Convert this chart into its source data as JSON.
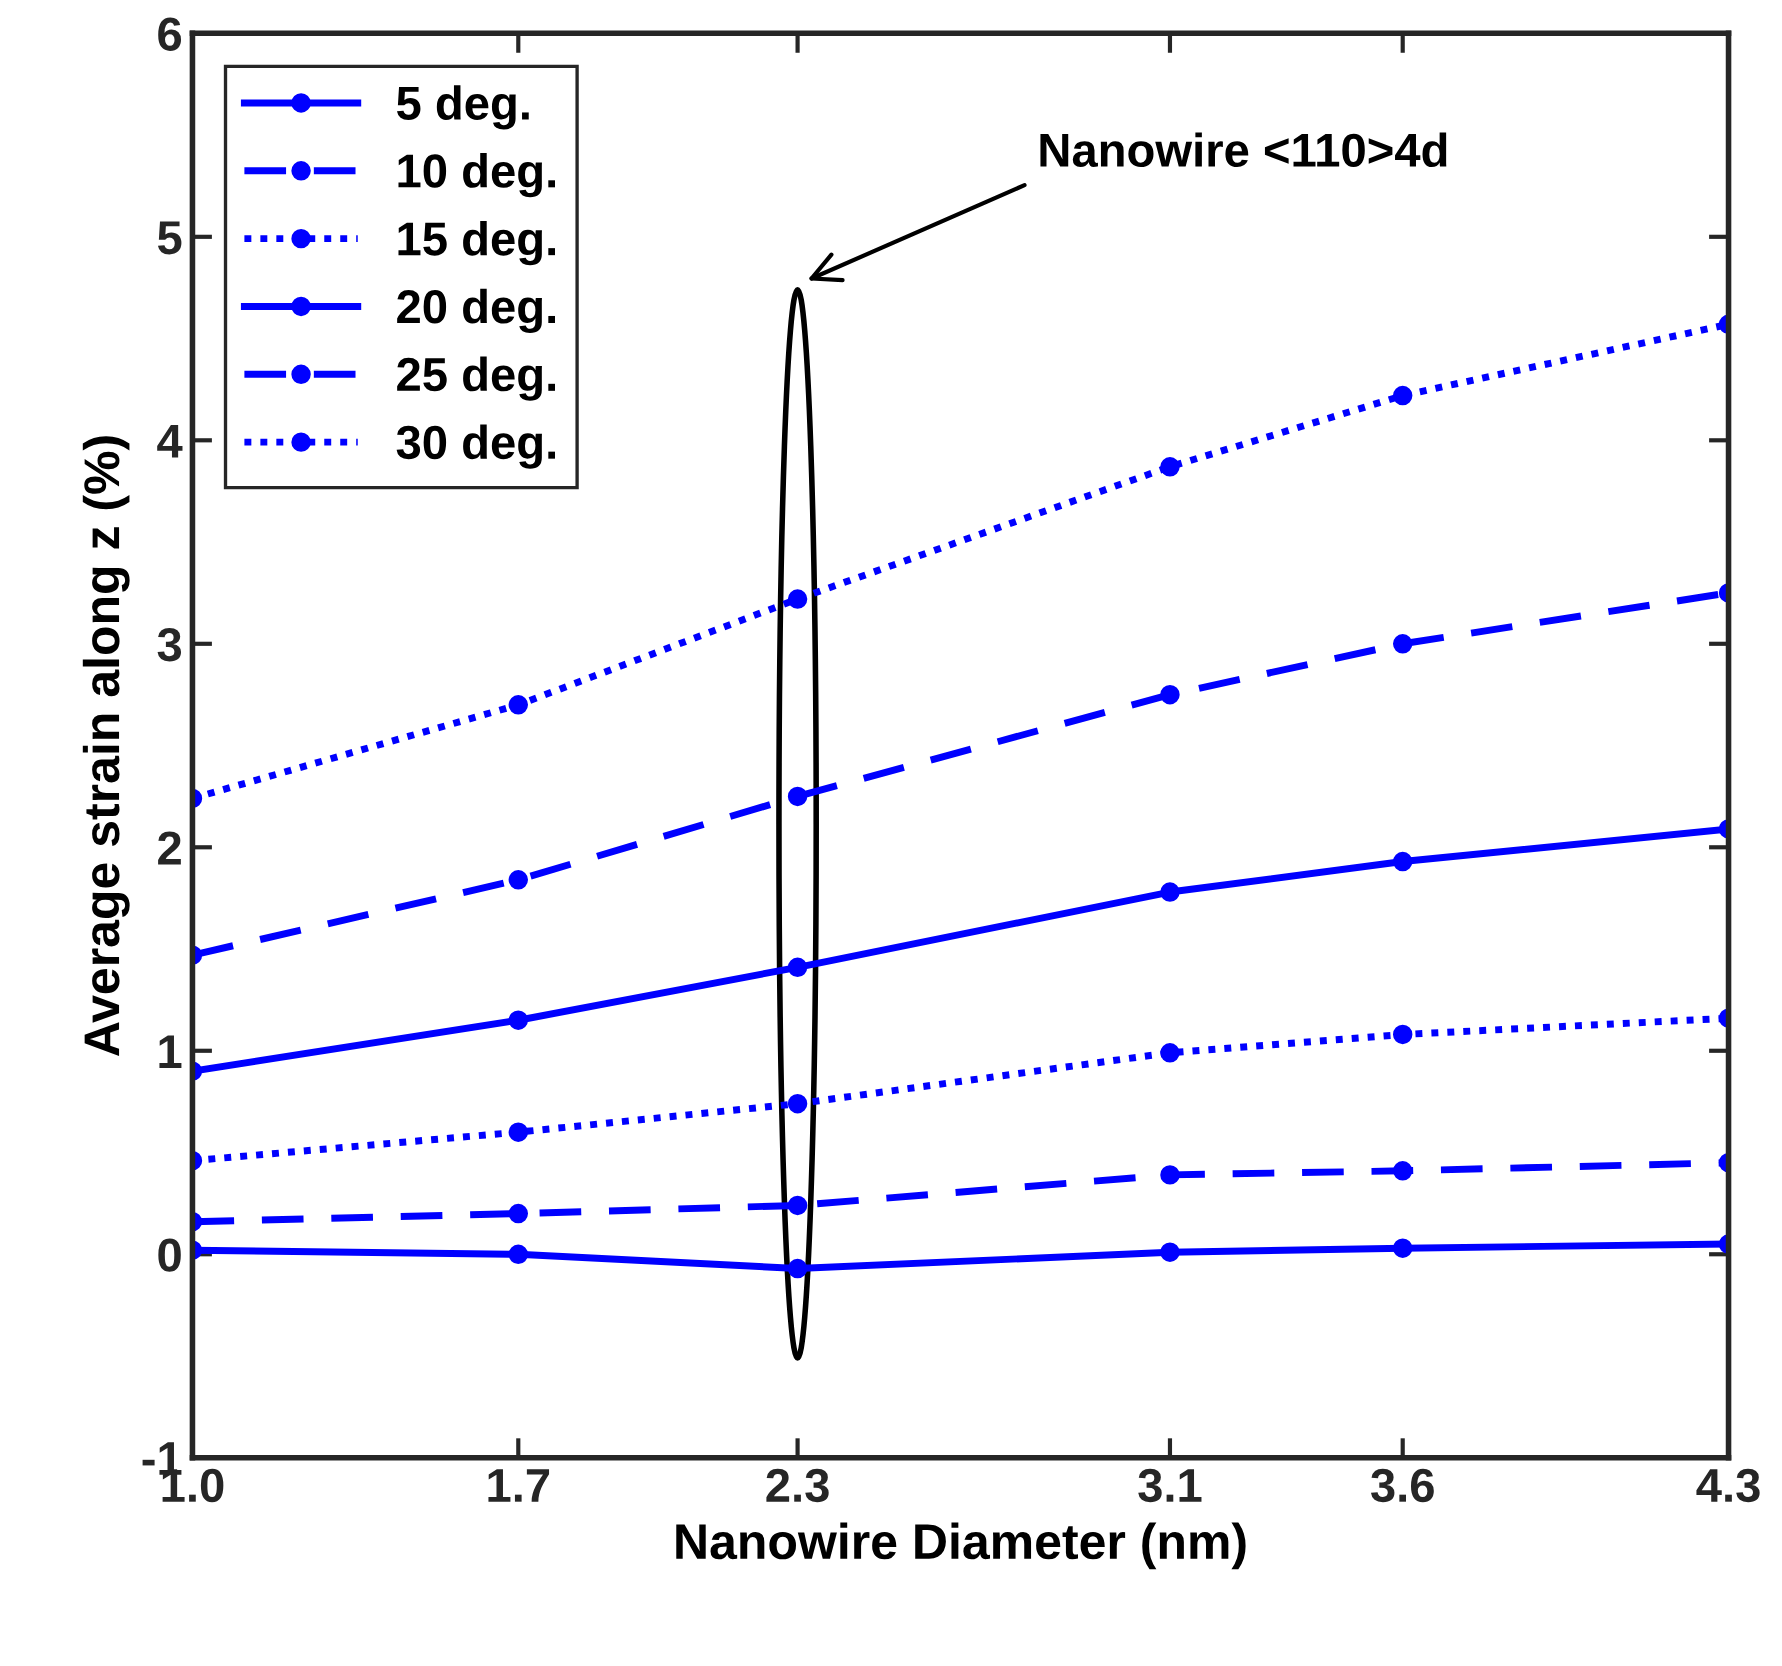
{
  "chart_data": {
    "type": "line",
    "xlabel": "Nanowire Diameter (nm)",
    "ylabel": "Average strain along z (%)",
    "x": [
      1.0,
      1.7,
      2.3,
      3.1,
      3.6,
      4.3
    ],
    "series": [
      {
        "name": "5 deg.",
        "color": "#0000ff",
        "line_style": "solid",
        "marker": "circle",
        "values": [
          0.02,
          0.0,
          -0.07,
          0.01,
          0.03,
          0.05
        ]
      },
      {
        "name": "10 deg.",
        "color": "#0000ff",
        "line_style": "dashed",
        "marker": "circle",
        "values": [
          0.16,
          0.2,
          0.24,
          0.39,
          0.41,
          0.45
        ]
      },
      {
        "name": "15 deg.",
        "color": "#0000ff",
        "line_style": "dotted",
        "marker": "circle",
        "values": [
          0.46,
          0.6,
          0.74,
          0.99,
          1.08,
          1.16
        ]
      },
      {
        "name": "20 deg.",
        "color": "#0000ff",
        "line_style": "solid",
        "marker": "circle",
        "values": [
          0.9,
          1.15,
          1.41,
          1.78,
          1.93,
          2.09
        ]
      },
      {
        "name": "25 deg.",
        "color": "#0000ff",
        "line_style": "dashed",
        "marker": "circle",
        "values": [
          1.47,
          1.84,
          2.25,
          2.75,
          3.0,
          3.25
        ]
      },
      {
        "name": "30 deg.",
        "color": "#0000ff",
        "line_style": "dotted",
        "marker": "circle",
        "values": [
          2.24,
          2.7,
          3.22,
          3.87,
          4.22,
          4.57
        ]
      }
    ],
    "xlim": [
      1.0,
      4.3
    ],
    "xticks": [
      {
        "value": 1.0,
        "label": "1.0"
      },
      {
        "value": 1.7,
        "label": "1.7"
      },
      {
        "value": 2.3,
        "label": "2.3"
      },
      {
        "value": 3.1,
        "label": "3.1"
      },
      {
        "value": 3.6,
        "label": "3.6"
      },
      {
        "value": 4.3,
        "label": "4.3"
      }
    ],
    "ylim": [
      -1,
      6
    ],
    "yticks": [
      -1,
      0,
      1,
      2,
      3,
      4,
      5,
      6
    ],
    "annotations": [
      "Nanowire <110>4d"
    ],
    "legend": "top left",
    "grid": false
  }
}
